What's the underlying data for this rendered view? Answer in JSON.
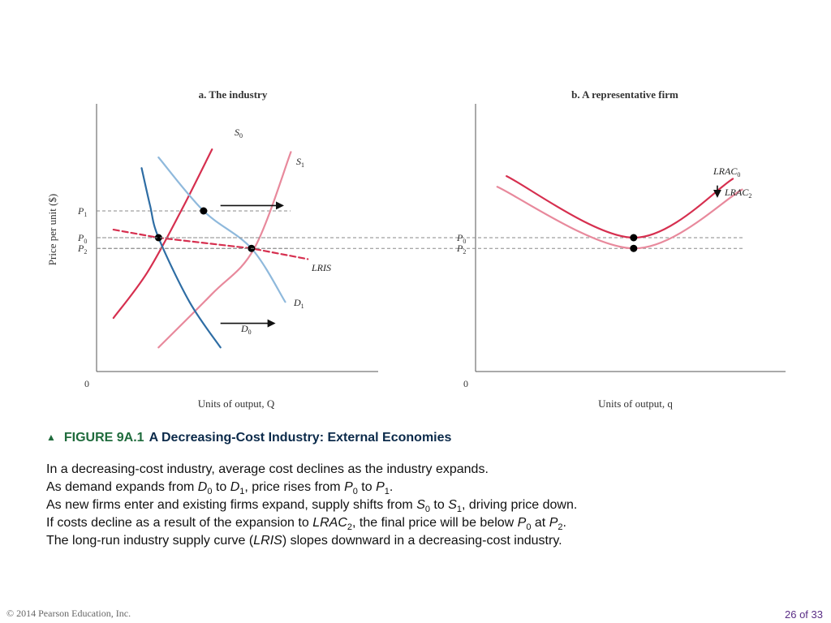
{
  "chart_data": [
    {
      "type": "line",
      "title": "a. The industry",
      "ylabel": "Price per unit ($)",
      "xlabel": "Units of output, Q",
      "origin_label": "0",
      "price_levels": [
        {
          "name": "P1",
          "base": "P",
          "sub": "1",
          "value": 6.0
        },
        {
          "name": "P0",
          "base": "P",
          "sub": "0",
          "value": 5.0
        },
        {
          "name": "P2",
          "base": "P",
          "sub": "2",
          "value": 4.6
        }
      ],
      "series": [
        {
          "name": "S0",
          "base": "S",
          "sub": "0",
          "color": "#d62f4f",
          "points": [
            [
              0.6,
              2.0
            ],
            [
              1.8,
              3.7
            ],
            [
              3.0,
              6.0
            ],
            [
              4.1,
              8.3
            ]
          ]
        },
        {
          "name": "S1",
          "base": "S",
          "sub": "1",
          "color": "#e8899c",
          "points": [
            [
              2.2,
              0.9
            ],
            [
              4.1,
              2.9
            ],
            [
              5.6,
              4.6
            ],
            [
              6.9,
              8.2
            ]
          ]
        },
        {
          "name": "D0",
          "base": "D",
          "sub": "0",
          "color": "#2e6da4",
          "points": [
            [
              1.6,
              7.6
            ],
            [
              1.9,
              6.2
            ],
            [
              2.2,
              5.0
            ],
            [
              3.3,
              2.6
            ],
            [
              4.4,
              0.9
            ]
          ]
        },
        {
          "name": "D1",
          "base": "D",
          "sub": "1",
          "color": "#8fb9dc",
          "points": [
            [
              2.2,
              8.0
            ],
            [
              3.8,
              6.0
            ],
            [
              5.5,
              4.6
            ],
            [
              6.7,
              2.6
            ]
          ]
        },
        {
          "name": "LRIS",
          "base": "LRIS",
          "sub": "",
          "color": "#d62f4f",
          "dashed": true,
          "points": [
            [
              0.6,
              5.3
            ],
            [
              2.2,
              5.0
            ],
            [
              5.5,
              4.6
            ],
            [
              7.5,
              4.2
            ]
          ]
        }
      ],
      "equilibria": [
        {
          "label": "S0-D1",
          "x": 3.8,
          "y": 6.0
        },
        {
          "label": "S0-D0",
          "x": 2.2,
          "y": 5.0
        },
        {
          "label": "S1-D1",
          "x": 5.5,
          "y": 4.6
        }
      ],
      "shift_arrows": [
        {
          "from": [
            4.4,
            6.2
          ],
          "to": [
            6.6,
            6.2
          ]
        },
        {
          "from": [
            4.4,
            1.8
          ],
          "to": [
            6.3,
            1.8
          ]
        }
      ],
      "xlim": [
        0,
        10
      ],
      "ylim": [
        0,
        10
      ]
    },
    {
      "type": "line",
      "title": "b. A representative firm",
      "xlabel": "Units of output, q",
      "origin_label": "0",
      "price_levels": [
        {
          "name": "P0",
          "base": "P",
          "sub": "0",
          "value": 5.0
        },
        {
          "name": "P2",
          "base": "P",
          "sub": "2",
          "value": 4.6
        }
      ],
      "series": [
        {
          "name": "LRAC0",
          "base": "LRAC",
          "sub": "0",
          "color": "#d62f4f",
          "points": [
            [
              1.0,
              7.3
            ],
            [
              5.1,
              5.0
            ],
            [
              8.3,
              7.2
            ]
          ]
        },
        {
          "name": "LRAC2",
          "base": "LRAC",
          "sub": "2",
          "color": "#e8899c",
          "points": [
            [
              0.7,
              6.9
            ],
            [
              5.1,
              4.6
            ],
            [
              8.6,
              6.8
            ]
          ]
        }
      ],
      "minima": [
        {
          "label": "LRAC0 min",
          "x": 5.1,
          "y": 5.0
        },
        {
          "label": "LRAC2 min",
          "x": 5.1,
          "y": 4.6
        }
      ],
      "shift_arrows": [
        {
          "from": [
            7.8,
            6.95
          ],
          "to": [
            7.8,
            6.55
          ]
        }
      ],
      "xlim": [
        0,
        10
      ],
      "ylim": [
        0,
        10
      ]
    }
  ],
  "caption": {
    "number": "FIGURE 9A.1",
    "title": "A Decreasing-Cost Industry: External Economies",
    "lines": [
      [
        {
          "t": "In a decreasing-cost industry, average cost declines as the industry expands."
        }
      ],
      [
        {
          "t": "As demand expands from "
        },
        {
          "t": "D",
          "i": true
        },
        {
          "t": "0",
          "sub": true
        },
        {
          "t": " to "
        },
        {
          "t": "D",
          "i": true
        },
        {
          "t": "1",
          "sub": true
        },
        {
          "t": ", price rises from "
        },
        {
          "t": "P",
          "i": true
        },
        {
          "t": "0",
          "sub": true
        },
        {
          "t": " to "
        },
        {
          "t": "P",
          "i": true
        },
        {
          "t": "1",
          "sub": true
        },
        {
          "t": "."
        }
      ],
      [
        {
          "t": "As new firms enter and existing firms expand, supply shifts from "
        },
        {
          "t": "S",
          "i": true
        },
        {
          "t": "0",
          "sub": true
        },
        {
          "t": " to "
        },
        {
          "t": "S",
          "i": true
        },
        {
          "t": "1",
          "sub": true
        },
        {
          "t": ", driving price down."
        }
      ],
      [
        {
          "t": "If costs decline as a result of the expansion to "
        },
        {
          "t": "LRAC",
          "i": true
        },
        {
          "t": "2",
          "sub": true
        },
        {
          "t": ", the final price will be below "
        },
        {
          "t": "P",
          "i": true
        },
        {
          "t": "0",
          "sub": true
        },
        {
          "t": " at "
        },
        {
          "t": "P",
          "i": true
        },
        {
          "t": "2",
          "sub": true
        },
        {
          "t": "."
        }
      ],
      [
        {
          "t": "The long-run industry supply curve ("
        },
        {
          "t": "LRIS",
          "i": true
        },
        {
          "t": ") slopes downward in a decreasing-cost industry."
        }
      ]
    ]
  },
  "footer": {
    "copyright": "© 2014 Pearson Education, Inc.",
    "page": "26 of 33"
  },
  "colors": {
    "supply": "#d62f4f",
    "supply_shifted": "#e8899c",
    "demand": "#2e6da4",
    "demand_shifted": "#8fb9dc",
    "caption_accent": "#1f6b3c",
    "page_number": "#5a2d86"
  }
}
